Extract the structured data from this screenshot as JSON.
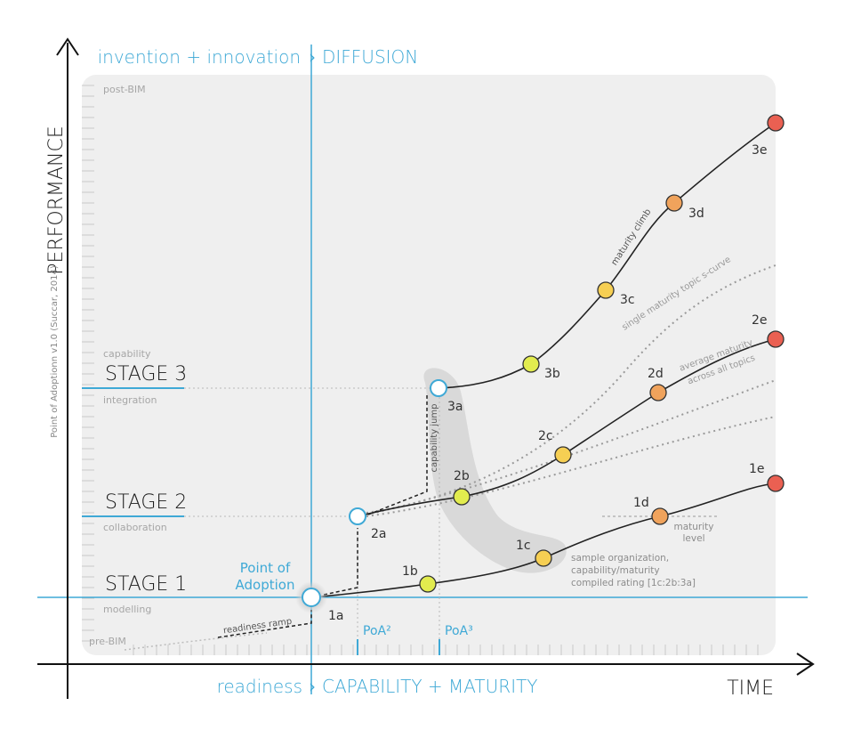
{
  "axes": {
    "y_title": "PERFORMANCE",
    "x_title": "TIME",
    "credit": "Point of Adoptionn  v1.0  (Succar, 2014)"
  },
  "header": {
    "left": "invention + innovation",
    "separator": "›",
    "right": "DIFFUSION"
  },
  "footer": {
    "left": "readiness",
    "separator": "›",
    "right": "CAPABILITY + MATURITY"
  },
  "levels": {
    "post_bim": "post-BIM",
    "capability": "capability",
    "stage3": "STAGE 3",
    "integration": "integration",
    "stage2": "STAGE 2",
    "collaboration": "collaboration",
    "stage1": "STAGE 1",
    "modelling": "modelling",
    "pre_bim": "pre-BIM"
  },
  "annotations": {
    "point_of_adoption_1": "Point of",
    "point_of_adoption_2": "Adoption",
    "readiness_ramp": "readiness ramp",
    "poa2": "PoA²",
    "poa3": "PoA³",
    "capability_jump": "capability jump",
    "maturity_climb": "maturity climb",
    "single_maturity": "single maturity topic s-curve",
    "average_maturity_1": "average maturity",
    "average_maturity_2": "across all topics",
    "maturity_level_1": "maturity",
    "maturity_level_2": "level",
    "sample_1": "sample organization,",
    "sample_2": "capability/maturity",
    "sample_3": "compiled rating [1c:2b:3a]"
  },
  "points": {
    "p1a": "1a",
    "p1b": "1b",
    "p1c": "1c",
    "p1d": "1d",
    "p1e": "1e",
    "p2a": "2a",
    "p2b": "2b",
    "p2c": "2c",
    "p2d": "2d",
    "p2e": "2e",
    "p3a": "3a",
    "p3b": "3b",
    "p3c": "3c",
    "p3d": "3d",
    "p3e": "3e"
  },
  "colors": {
    "accent_blue": "#3fa9d6",
    "yellow_green": "#e2ec4e",
    "yellow": "#f6cf53",
    "orange": "#f0a35c",
    "red": "#ea6052",
    "panel": "#efefef"
  }
}
